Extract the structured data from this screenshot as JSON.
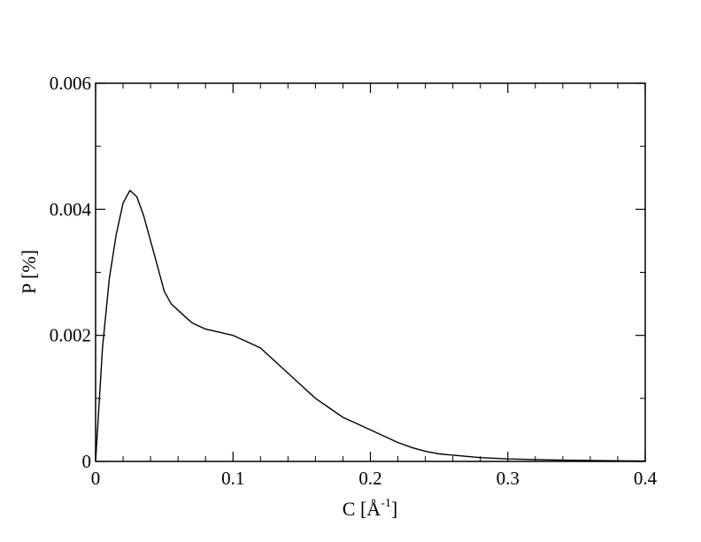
{
  "chart_data": {
    "type": "line",
    "title": "",
    "xlabel": {
      "prefix": "C [Å",
      "superscript": "-1",
      "suffix": "]"
    },
    "ylabel": "P [%]",
    "xlim": [
      0,
      0.4
    ],
    "ylim": [
      0,
      0.006
    ],
    "x_ticks": [
      0,
      0.1,
      0.2,
      0.3,
      0.4
    ],
    "x_tick_labels": [
      "0",
      "0.1",
      "0.2",
      "0.3",
      "0.4"
    ],
    "y_ticks": [
      0,
      0.002,
      0.004,
      0.006
    ],
    "y_tick_labels": [
      "0",
      "0.002",
      "0.004",
      "0.006"
    ],
    "minor_x_step": 0.02,
    "minor_y_step": 0.001,
    "grid": false,
    "legend": "none",
    "line_color": "#000000",
    "series": [
      {
        "x": [
          0,
          0.005,
          0.01,
          0.015,
          0.02,
          0.025,
          0.03,
          0.035,
          0.04,
          0.045,
          0.05,
          0.055,
          0.06,
          0.065,
          0.07,
          0.075,
          0.08,
          0.09,
          0.1,
          0.11,
          0.12,
          0.13,
          0.14,
          0.15,
          0.16,
          0.17,
          0.18,
          0.19,
          0.2,
          0.21,
          0.22,
          0.23,
          0.24,
          0.25,
          0.26,
          0.27,
          0.28,
          0.29,
          0.3,
          0.32,
          0.34,
          0.36,
          0.38,
          0.4
        ],
        "values": [
          0,
          0.0018,
          0.0029,
          0.0036,
          0.0041,
          0.0043,
          0.0042,
          0.0039,
          0.0035,
          0.0031,
          0.0027,
          0.0025,
          0.0024,
          0.0023,
          0.0022,
          0.00215,
          0.0021,
          0.00205,
          0.002,
          0.0019,
          0.0018,
          0.0016,
          0.0014,
          0.0012,
          0.001,
          0.00085,
          0.0007,
          0.0006,
          0.0005,
          0.0004,
          0.0003,
          0.00022,
          0.00016,
          0.00012,
          0.0001,
          8e-05,
          6e-05,
          5e-05,
          4e-05,
          3e-05,
          2e-05,
          1.5e-05,
          1e-05,
          5e-06
        ]
      }
    ]
  }
}
